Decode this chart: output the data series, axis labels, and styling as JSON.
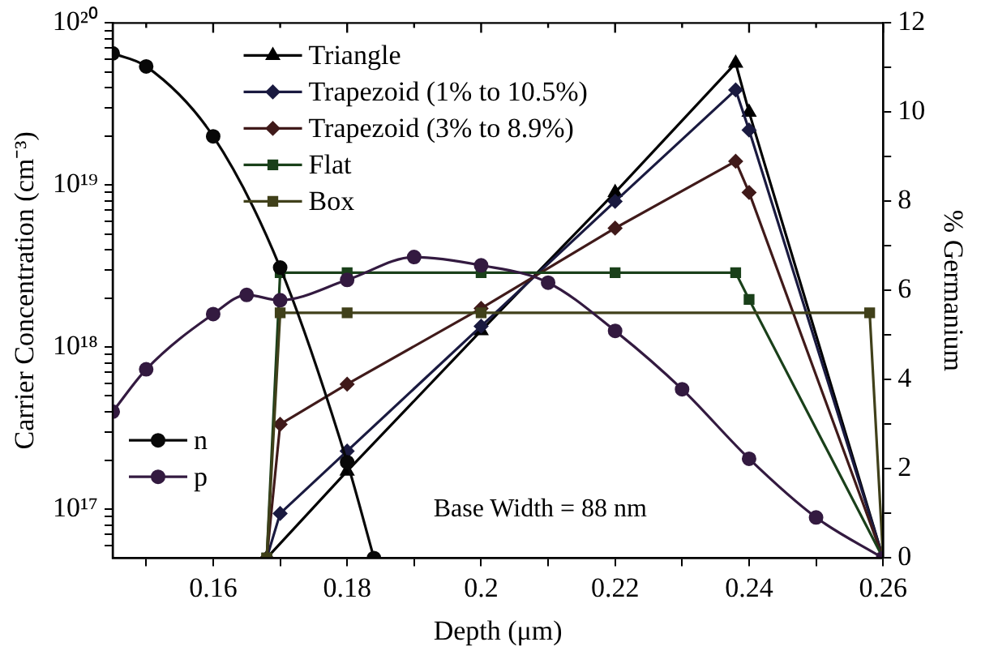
{
  "chart_data": {
    "type": "line",
    "xlabel": "Depth (μm)",
    "ylabel": "Carrier Concentration (cm⁻³)",
    "y2label": "% Germanium",
    "xlim": [
      0.145,
      0.26
    ],
    "xticks": [
      0.16,
      0.18,
      0.2,
      0.22,
      0.24,
      0.26,
      {
        "value": 0.15,
        "label": null
      },
      {
        "value": 0.17,
        "label": null
      },
      {
        "value": 0.19,
        "label": null
      },
      {
        "value": 0.21,
        "label": null
      },
      {
        "value": 0.23,
        "label": null
      },
      {
        "value": 0.25,
        "label": null
      }
    ],
    "ylim": [
      5e+16,
      1e+20
    ],
    "yticks": [
      {
        "value": 1e+17,
        "label": "10¹⁷"
      },
      {
        "value": 1e+18,
        "label": "10¹⁸"
      },
      {
        "value": 1e+19,
        "label": "10¹⁹"
      },
      {
        "value": 1e+20,
        "label": "10²⁰"
      },
      {
        "value": 6e+16,
        "label": null
      },
      {
        "value": 7e+16,
        "label": null
      },
      {
        "value": 8e+16,
        "label": null
      },
      {
        "value": 9e+16,
        "label": null
      },
      {
        "value": 2e+17,
        "label": null
      },
      {
        "value": 3e+17,
        "label": null
      },
      {
        "value": 4e+17,
        "label": null
      },
      {
        "value": 5e+17,
        "label": null
      },
      {
        "value": 6e+17,
        "label": null
      },
      {
        "value": 7e+17,
        "label": null
      },
      {
        "value": 8e+17,
        "label": null
      },
      {
        "value": 9e+17,
        "label": null
      },
      {
        "value": 2e+18,
        "label": null
      },
      {
        "value": 3e+18,
        "label": null
      },
      {
        "value": 4e+18,
        "label": null
      },
      {
        "value": 5e+18,
        "label": null
      },
      {
        "value": 6e+18,
        "label": null
      },
      {
        "value": 7e+18,
        "label": null
      },
      {
        "value": 8e+18,
        "label": null
      },
      {
        "value": 9e+18,
        "label": null
      },
      {
        "value": 2e+19,
        "label": null
      },
      {
        "value": 3e+19,
        "label": null
      },
      {
        "value": 4e+19,
        "label": null
      },
      {
        "value": 5e+19,
        "label": null
      },
      {
        "value": 6e+19,
        "label": null
      },
      {
        "value": 7e+19,
        "label": null
      },
      {
        "value": 8e+19,
        "label": null
      },
      {
        "value": 9e+19,
        "label": null
      }
    ],
    "y2lim": [
      0,
      12
    ],
    "y2ticks": [
      0,
      2,
      4,
      6,
      8,
      10,
      12,
      {
        "value": 1,
        "label": null
      },
      {
        "value": 3,
        "label": null
      },
      {
        "value": 5,
        "label": null
      },
      {
        "value": 7,
        "label": null
      },
      {
        "value": 9,
        "label": null
      },
      {
        "value": 11,
        "label": null
      }
    ],
    "log": "y",
    "grid": false,
    "legend": "top",
    "line_style": "solid",
    "annotations": [
      "Base Width = 88 nm"
    ],
    "series": [
      {
        "name": "Triangle",
        "axis": "y2",
        "marker": "triangle",
        "color": "#000000",
        "x": [
          0.168,
          0.18,
          0.2,
          0.22,
          0.238,
          0.24,
          0.26
        ],
        "values": [
          0,
          1.95,
          5.1,
          8.2,
          11.1,
          10.0,
          0
        ]
      },
      {
        "name": "Trapezoid (1% to 10.5%)",
        "axis": "y2",
        "marker": "diamond",
        "color": "#1a1a40",
        "x": [
          0.168,
          0.17,
          0.18,
          0.2,
          0.22,
          0.238,
          0.24,
          0.26
        ],
        "values": [
          0,
          1,
          2.4,
          5.2,
          8.0,
          10.5,
          9.6,
          0
        ]
      },
      {
        "name": "Trapezoid (3% to 8.9%)",
        "axis": "y2",
        "marker": "diamond",
        "color": "#401a1a",
        "x": [
          0.168,
          0.17,
          0.18,
          0.2,
          0.22,
          0.238,
          0.24,
          0.26
        ],
        "values": [
          0,
          3,
          3.9,
          5.6,
          7.4,
          8.9,
          8.2,
          0
        ]
      },
      {
        "name": "Flat",
        "axis": "y2",
        "marker": "square",
        "color": "#1a401a",
        "x": [
          0.168,
          0.17,
          0.18,
          0.2,
          0.22,
          0.238,
          0.24,
          0.26
        ],
        "values": [
          0,
          6.4,
          6.4,
          6.4,
          6.4,
          6.4,
          5.8,
          0
        ]
      },
      {
        "name": "Box",
        "axis": "y2",
        "marker": "square",
        "color": "#40401a",
        "x": [
          0.168,
          0.17,
          0.18,
          0.2,
          0.258,
          0.26
        ],
        "values": [
          0,
          5.5,
          5.5,
          5.5,
          5.5,
          0
        ]
      },
      {
        "name": "n",
        "axis": "y",
        "marker": "circle",
        "color": "#080808",
        "x": [
          0.145,
          0.15,
          0.16,
          0.17,
          0.18,
          0.184
        ],
        "values": [
          6.5e+19,
          5.4e+19,
          2e+19,
          3.1e+18,
          1.95e+17,
          5e+16
        ]
      },
      {
        "name": "p",
        "axis": "y",
        "marker": "circle",
        "color": "#331a40",
        "x": [
          0.145,
          0.15,
          0.16,
          0.165,
          0.17,
          0.18,
          0.19,
          0.2,
          0.21,
          0.22,
          0.23,
          0.24,
          0.25,
          0.26
        ],
        "values": [
          4e+17,
          7.3e+17,
          1.6e+18,
          2.1e+18,
          1.95e+18,
          2.6e+18,
          3.6e+18,
          3.2e+18,
          2.5e+18,
          1.26e+18,
          5.5e+17,
          2.05e+17,
          8.9e+16,
          5e+16
        ]
      }
    ]
  }
}
